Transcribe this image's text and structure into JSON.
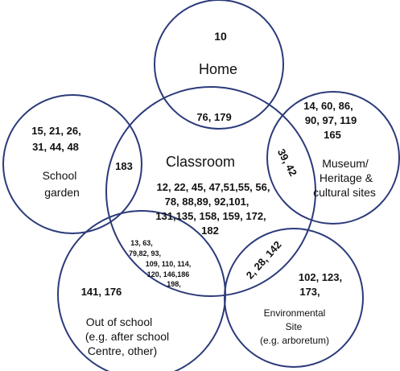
{
  "colors": {
    "circle_stroke": "#2b3a7a",
    "text": "#111111",
    "background": "#ffffff"
  },
  "home": {
    "number": "10",
    "label": "Home"
  },
  "classroom": {
    "label": "Classroom",
    "numbers": [
      "12, 22, 45, 47,51,55, 56,",
      "78, 88,89, 92,101,",
      "131,135, 158, 159, 172,",
      "182"
    ]
  },
  "museum": {
    "numbers": [
      "14, 60, 86,",
      "90, 97,  119",
      "165"
    ],
    "label": [
      "Museum/",
      "Heritage &",
      "cultural sites"
    ]
  },
  "school_garden": {
    "numbers": [
      "15, 21, 26,",
      "31, 44, 48"
    ],
    "label": [
      "School",
      "garden"
    ]
  },
  "out_of_school": {
    "numbers": "141, 176",
    "label": [
      "Out of school",
      "(e.g. after school",
      "Centre, other)"
    ]
  },
  "environmental": {
    "numbers": [
      "102, 123,",
      "173,"
    ],
    "label": [
      "Environmental",
      "Site",
      "(e.g. arboretum)"
    ]
  },
  "overlaps": {
    "home_classroom": "76, 179",
    "garden_classroom": "183",
    "museum_classroom": "39, 42",
    "env_classroom": "2, 28, 142",
    "out_classroom": [
      "13, 63,",
      "79,82, 93,",
      "109, 110, 114,",
      "120, 146,186",
      "198,"
    ]
  }
}
